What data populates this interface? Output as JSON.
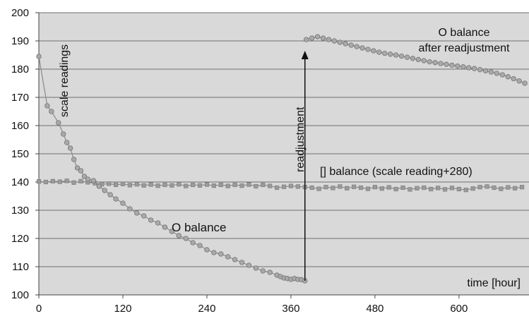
{
  "chart_data": {
    "type": "scatter",
    "title": "",
    "xlabel": "time [hour]",
    "ylabel": "",
    "xlim": [
      0,
      700
    ],
    "ylim": [
      100,
      200
    ],
    "x_ticks": [
      0,
      120,
      240,
      360,
      480,
      600
    ],
    "y_ticks": [
      100,
      110,
      120,
      130,
      140,
      150,
      160,
      170,
      180,
      190,
      200
    ],
    "grid": "horizontal",
    "background": "#d9d9d9",
    "series": [
      {
        "marker": "square",
        "color": "#9a9a9a",
        "points": [
          [
            0,
            140.2
          ],
          [
            10,
            140.0
          ],
          [
            20,
            140.3
          ],
          [
            30,
            140.1
          ],
          [
            40,
            140.4
          ],
          [
            50,
            139.8
          ],
          [
            60,
            140.3
          ],
          [
            70,
            139.9
          ],
          [
            80,
            139.6
          ],
          [
            90,
            139.2
          ],
          [
            100,
            139.4
          ],
          [
            110,
            139.0
          ],
          [
            120,
            139.3
          ],
          [
            130,
            138.9
          ],
          [
            140,
            139.2
          ],
          [
            150,
            138.8
          ],
          [
            160,
            139.1
          ],
          [
            170,
            138.7
          ],
          [
            180,
            139.0
          ],
          [
            190,
            138.8
          ],
          [
            200,
            139.2
          ],
          [
            210,
            138.6
          ],
          [
            220,
            139.0
          ],
          [
            230,
            138.8
          ],
          [
            240,
            139.1
          ],
          [
            250,
            138.7
          ],
          [
            260,
            139.0
          ],
          [
            270,
            138.6
          ],
          [
            280,
            139.0
          ],
          [
            290,
            138.7
          ],
          [
            300,
            139.1
          ],
          [
            310,
            138.5
          ],
          [
            320,
            139.0
          ],
          [
            330,
            138.6
          ],
          [
            340,
            138.0
          ],
          [
            350,
            138.3
          ],
          [
            360,
            138.6
          ],
          [
            370,
            138.4
          ],
          [
            380,
            138.2
          ],
          [
            390,
            138.0
          ],
          [
            400,
            137.6
          ],
          [
            410,
            138.2
          ],
          [
            420,
            137.9
          ],
          [
            430,
            138.4
          ],
          [
            440,
            137.8
          ],
          [
            450,
            138.3
          ],
          [
            460,
            138.0
          ],
          [
            470,
            137.6
          ],
          [
            480,
            138.2
          ],
          [
            490,
            137.7
          ],
          [
            500,
            138.1
          ],
          [
            510,
            137.5
          ],
          [
            520,
            138.0
          ],
          [
            530,
            137.4
          ],
          [
            540,
            137.8
          ],
          [
            550,
            138.0
          ],
          [
            560,
            137.5
          ],
          [
            570,
            137.9
          ],
          [
            580,
            137.4
          ],
          [
            590,
            137.9
          ],
          [
            600,
            137.5
          ],
          [
            610,
            137.2
          ],
          [
            620,
            137.7
          ],
          [
            630,
            138.2
          ],
          [
            640,
            138.4
          ],
          [
            650,
            138.0
          ],
          [
            660,
            137.6
          ],
          [
            670,
            138.1
          ],
          [
            680,
            137.8
          ],
          [
            690,
            138.2
          ]
        ]
      },
      {
        "marker": "circle",
        "color": "#a9a9a9",
        "points": [
          [
            0,
            184.5
          ],
          [
            12,
            167
          ],
          [
            18,
            165
          ],
          [
            28,
            161
          ],
          [
            35,
            157
          ],
          [
            40,
            154
          ],
          [
            45,
            152
          ],
          [
            50,
            148
          ],
          [
            55,
            145
          ],
          [
            60,
            144
          ],
          [
            65,
            142
          ],
          [
            70,
            141
          ],
          [
            78,
            140.5
          ],
          [
            86,
            138.5
          ],
          [
            94,
            137
          ],
          [
            102,
            135.5
          ],
          [
            110,
            134
          ],
          [
            120,
            132.5
          ],
          [
            130,
            130.5
          ],
          [
            140,
            129
          ],
          [
            150,
            128
          ],
          [
            160,
            126.5
          ],
          [
            170,
            125.5
          ],
          [
            180,
            124
          ],
          [
            190,
            122.5
          ],
          [
            200,
            121
          ],
          [
            210,
            120
          ],
          [
            220,
            118.5
          ],
          [
            230,
            117.5
          ],
          [
            240,
            116
          ],
          [
            250,
            115
          ],
          [
            260,
            114.5
          ],
          [
            270,
            113.5
          ],
          [
            280,
            112.5
          ],
          [
            290,
            111.5
          ],
          [
            300,
            110.5
          ],
          [
            310,
            109.5
          ],
          [
            320,
            108.5
          ],
          [
            330,
            108
          ],
          [
            340,
            107
          ],
          [
            345,
            106.5
          ],
          [
            350,
            106
          ],
          [
            355,
            105.8
          ],
          [
            360,
            105.5
          ],
          [
            365,
            105.8
          ],
          [
            370,
            105.5
          ],
          [
            375,
            105.4
          ],
          [
            380,
            105
          ]
        ]
      },
      {
        "marker": "circle",
        "color": "#a9a9a9",
        "points": [
          [
            382,
            190.5
          ],
          [
            390,
            191
          ],
          [
            398,
            191.5
          ],
          [
            406,
            191
          ],
          [
            414,
            190.5
          ],
          [
            422,
            190
          ],
          [
            430,
            189.5
          ],
          [
            438,
            189
          ],
          [
            446,
            188.5
          ],
          [
            454,
            188
          ],
          [
            462,
            187.5
          ],
          [
            470,
            187
          ],
          [
            478,
            186.5
          ],
          [
            486,
            186
          ],
          [
            494,
            185.6
          ],
          [
            502,
            185.3
          ],
          [
            510,
            185
          ],
          [
            518,
            184.6
          ],
          [
            526,
            184.2
          ],
          [
            534,
            183.8
          ],
          [
            542,
            183.4
          ],
          [
            550,
            183
          ],
          [
            558,
            182.6
          ],
          [
            566,
            182.3
          ],
          [
            574,
            182
          ],
          [
            582,
            181.7
          ],
          [
            590,
            181.4
          ],
          [
            598,
            181.1
          ],
          [
            606,
            180.8
          ],
          [
            614,
            180.5
          ],
          [
            622,
            180.2
          ],
          [
            630,
            179.8
          ],
          [
            638,
            179.4
          ],
          [
            646,
            179
          ],
          [
            654,
            178.5
          ],
          [
            662,
            178
          ],
          [
            670,
            177.3
          ],
          [
            678,
            176.6
          ],
          [
            686,
            175.8
          ],
          [
            694,
            175
          ]
        ]
      }
    ],
    "annotations": {
      "scale_readings": "scale readings",
      "o_balance": "O balance",
      "o_balance_after_line1": "O balance",
      "o_balance_after_line2": "after readjustment",
      "square_balance": "[] balance (scale reading+280)",
      "readjustment": "readjustment"
    },
    "arrow": {
      "x": 380,
      "y_from": 105,
      "y_to": 186
    }
  }
}
